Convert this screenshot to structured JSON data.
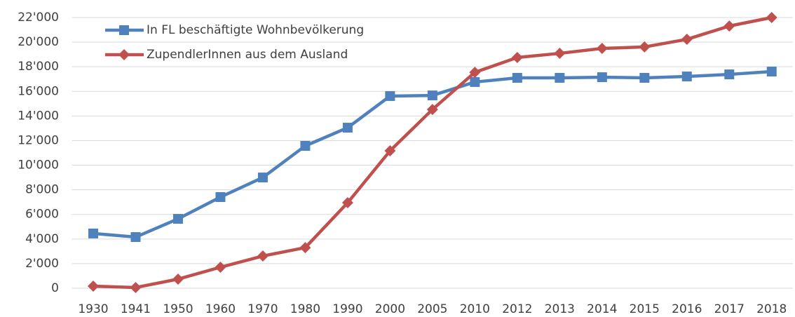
{
  "chart_data": {
    "type": "line",
    "categories": [
      "1930",
      "1941",
      "1950",
      "1960",
      "1970",
      "1980",
      "1990",
      "2000",
      "2005",
      "2010",
      "2012",
      "2013",
      "2014",
      "2015",
      "2016",
      "2017",
      "2018"
    ],
    "series": [
      {
        "name": "In FL beschäftigte Wohnbevölkerung",
        "color": "#4f81bd",
        "marker": "square",
        "values": [
          4450,
          4160,
          5640,
          7410,
          9000,
          11570,
          13050,
          15620,
          15670,
          16760,
          17100,
          17100,
          17150,
          17100,
          17210,
          17380,
          17610
        ]
      },
      {
        "name": "ZupendlerInnen aus dem Ausland",
        "color": "#c0504d",
        "marker": "diamond",
        "values": [
          170,
          60,
          740,
          1710,
          2620,
          3300,
          6950,
          11170,
          14530,
          17550,
          18750,
          19090,
          19490,
          19610,
          20230,
          21310,
          22000
        ]
      }
    ],
    "ylim": [
      0,
      22000
    ],
    "yticks": [
      0,
      {
        "value": 2000,
        "label": "2'000"
      },
      {
        "value": 4000,
        "label": "4'000"
      },
      {
        "value": 6000,
        "label": "6'000"
      },
      {
        "value": 8000,
        "label": "8'000"
      },
      {
        "value": 10000,
        "label": "10'000"
      },
      {
        "value": 12000,
        "label": "12'000"
      },
      {
        "value": 14000,
        "label": "14'000"
      },
      {
        "value": 16000,
        "label": "16'000"
      },
      {
        "value": 18000,
        "label": "18'000"
      },
      {
        "value": 20000,
        "label": "20'000"
      },
      {
        "value": 22000,
        "label": "22'000"
      }
    ],
    "grid": true,
    "legend": "top-left"
  }
}
